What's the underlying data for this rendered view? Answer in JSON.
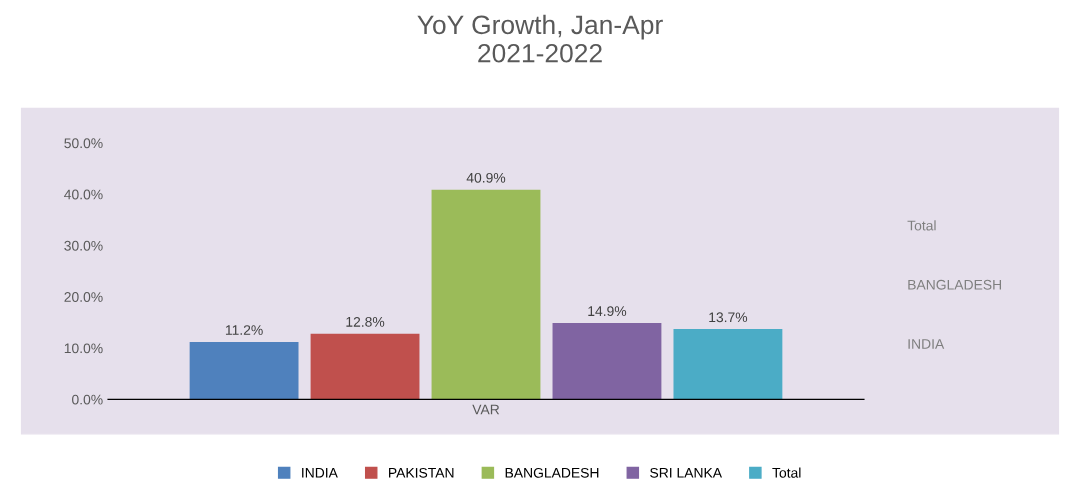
{
  "chart_data": {
    "type": "bar",
    "title": "YoY Growth, Jan-Apr\n2021-2022",
    "categories": [
      "VAR"
    ],
    "series": [
      {
        "name": "INDIA",
        "color": "#4f81bd",
        "values": [
          11.2
        ],
        "value_labels": [
          "11.2%"
        ]
      },
      {
        "name": "PAKISTAN",
        "color": "#c0504d",
        "values": [
          12.8
        ],
        "value_labels": [
          "12.8%"
        ]
      },
      {
        "name": "BANGLADESH",
        "color": "#9bbb59",
        "values": [
          40.9
        ],
        "value_labels": [
          "40.9%"
        ]
      },
      {
        "name": "SRI LANKA",
        "color": "#8064a2",
        "values": [
          14.9
        ],
        "value_labels": [
          "14.9%"
        ]
      },
      {
        "name": "Total",
        "color": "#4bacc6",
        "values": [
          13.7
        ],
        "value_labels": [
          "13.7%"
        ]
      }
    ],
    "ylim": [
      0,
      50
    ],
    "yticks": [
      {
        "value": 0,
        "label": "0.0%"
      },
      {
        "value": 10,
        "label": "10.0%"
      },
      {
        "value": 20,
        "label": "20.0%"
      },
      {
        "value": 30,
        "label": "30.0%"
      },
      {
        "value": 40,
        "label": "40.0%"
      },
      {
        "value": 50,
        "label": "50.0%"
      }
    ],
    "annotations": [
      "INDIA",
      "BANGLADESH",
      "Total"
    ],
    "grid": false,
    "legend": "bottom"
  }
}
